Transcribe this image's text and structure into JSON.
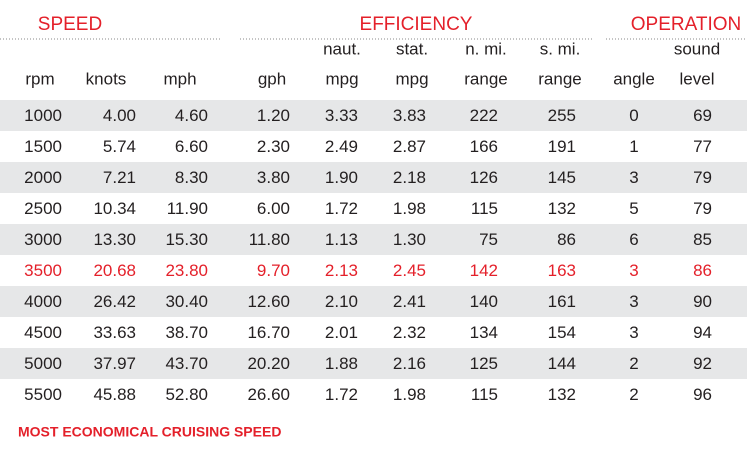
{
  "groups": [
    {
      "label": "SPEED"
    },
    {
      "label": "EFFICIENCY"
    },
    {
      "label": "OPERATION"
    }
  ],
  "columns": [
    [
      "rpm"
    ],
    [
      "knots"
    ],
    [
      "mph"
    ],
    [
      "gph"
    ],
    [
      "naut.",
      "mpg"
    ],
    [
      "stat.",
      "mpg"
    ],
    [
      "n. mi.",
      "range"
    ],
    [
      "s. mi.",
      "range"
    ],
    [
      "angle"
    ],
    [
      "sound",
      "level"
    ]
  ],
  "rows": [
    [
      "1000",
      "4.00",
      "4.60",
      "1.20",
      "3.33",
      "3.83",
      "222",
      "255",
      "0",
      "69"
    ],
    [
      "1500",
      "5.74",
      "6.60",
      "2.30",
      "2.49",
      "2.87",
      "166",
      "191",
      "1",
      "77"
    ],
    [
      "2000",
      "7.21",
      "8.30",
      "3.80",
      "1.90",
      "2.18",
      "126",
      "145",
      "3",
      "79"
    ],
    [
      "2500",
      "10.34",
      "11.90",
      "6.00",
      "1.72",
      "1.98",
      "115",
      "132",
      "5",
      "79"
    ],
    [
      "3000",
      "13.30",
      "15.30",
      "11.80",
      "1.13",
      "1.30",
      "75",
      "86",
      "6",
      "85"
    ],
    [
      "3500",
      "20.68",
      "23.80",
      "9.70",
      "2.13",
      "2.45",
      "142",
      "163",
      "3",
      "86"
    ],
    [
      "4000",
      "26.42",
      "30.40",
      "12.60",
      "2.10",
      "2.41",
      "140",
      "161",
      "3",
      "90"
    ],
    [
      "4500",
      "33.63",
      "38.70",
      "16.70",
      "2.01",
      "2.32",
      "134",
      "154",
      "3",
      "94"
    ],
    [
      "5000",
      "37.97",
      "43.70",
      "20.20",
      "1.88",
      "2.16",
      "125",
      "144",
      "2",
      "92"
    ],
    [
      "5500",
      "45.88",
      "52.80",
      "26.60",
      "1.72",
      "1.98",
      "115",
      "132",
      "2",
      "96"
    ]
  ],
  "highlight_row": 5,
  "footnote": "MOST ECONOMICAL CRUISING SPEED"
}
